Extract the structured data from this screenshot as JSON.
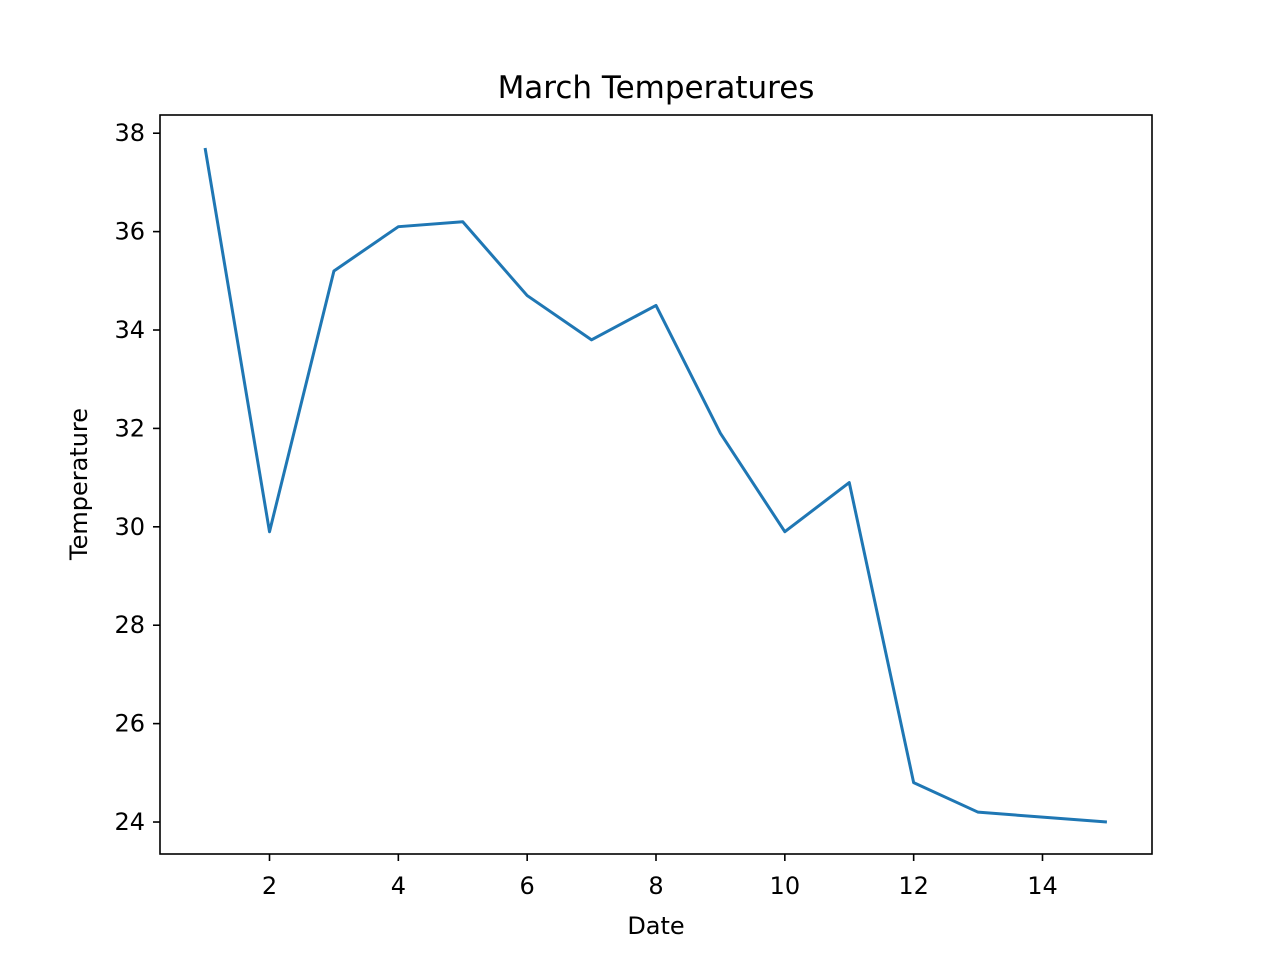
{
  "chart_data": {
    "type": "line",
    "title": "March Temperatures",
    "xlabel": "Date",
    "ylabel": "Temperature",
    "xlim": [
      0.3,
      15.7
    ],
    "ylim": [
      23.35,
      38.37
    ],
    "xticks": [
      2,
      4,
      6,
      8,
      10,
      12,
      14
    ],
    "yticks": [
      24,
      26,
      28,
      30,
      32,
      34,
      36,
      38
    ],
    "grid": false,
    "series": [
      {
        "color": "#1f77b4",
        "x": [
          1,
          2,
          3,
          4,
          5,
          6,
          7,
          8,
          9,
          10,
          11,
          12,
          13,
          14,
          15
        ],
        "y": [
          37.7,
          29.9,
          35.2,
          36.1,
          36.2,
          34.7,
          33.8,
          34.5,
          31.9,
          29.9,
          30.9,
          24.8,
          24.2,
          24.1,
          24.0
        ]
      }
    ]
  }
}
